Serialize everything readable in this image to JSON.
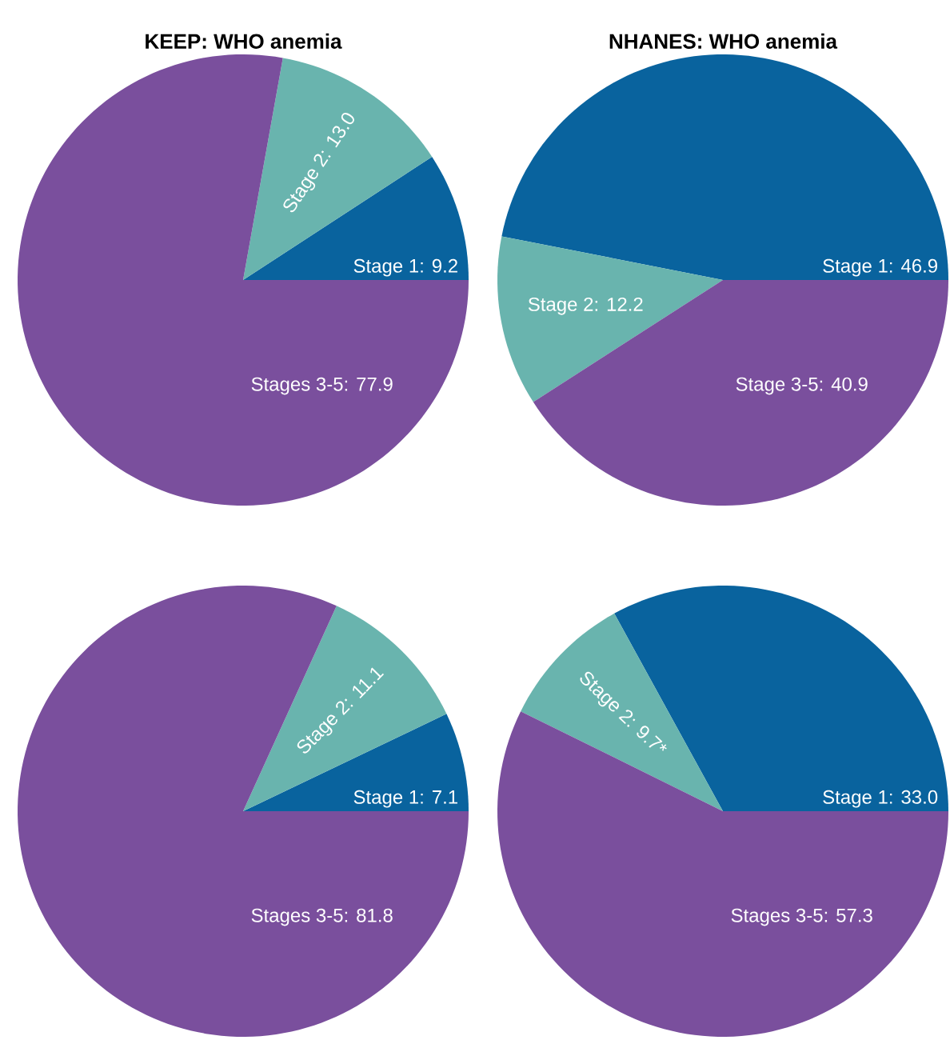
{
  "chart_data": [
    {
      "type": "pie",
      "title": "KEEP: WHO anemia",
      "categories": [
        "Stage 1: 9.2",
        "Stage 2: 13.0",
        "Stages 3-5: 77.9"
      ],
      "values": [
        9.2,
        13.0,
        77.9
      ],
      "colors": [
        "#09639e",
        "#69b4ae",
        "#7a4f9d"
      ],
      "legend": false
    },
    {
      "type": "pie",
      "title": "NHANES: WHO anemia",
      "categories": [
        "Stage 1: 46.9",
        "Stage 2: 12.2",
        "Stage 3-5: 40.9"
      ],
      "values": [
        46.9,
        12.2,
        40.9
      ],
      "colors": [
        "#09639e",
        "#69b4ae",
        "#7a4f9d"
      ],
      "legend": false
    },
    {
      "type": "pie",
      "categories": [
        "Stage 1: 7.1",
        "Stage 2: 11.1",
        "Stages 3-5: 81.8"
      ],
      "values": [
        7.1,
        11.1,
        81.8
      ],
      "colors": [
        "#09639e",
        "#69b4ae",
        "#7a4f9d"
      ],
      "legend": false
    },
    {
      "type": "pie",
      "categories": [
        "Stage 1: 33.0",
        "Stage 2: 9.7*",
        "Stages 3-5: 57.3"
      ],
      "values": [
        33.0,
        9.7,
        57.3
      ],
      "colors": [
        "#09639e",
        "#69b4ae",
        "#7a4f9d"
      ],
      "legend": false
    }
  ]
}
